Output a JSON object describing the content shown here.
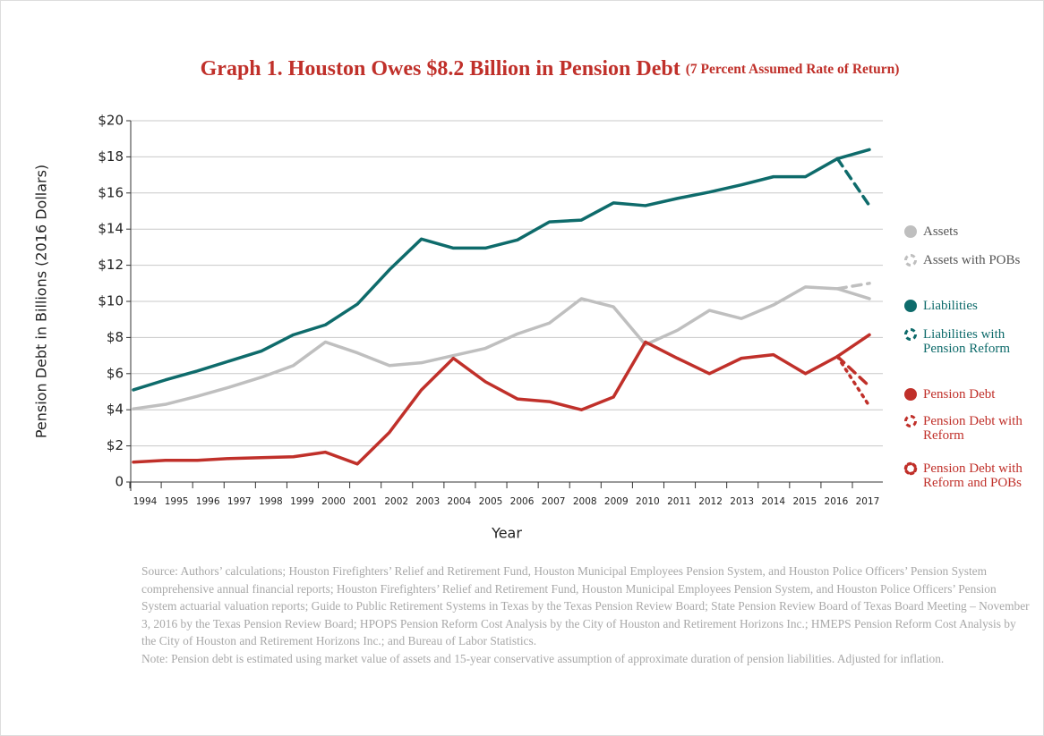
{
  "chart_data": {
    "type": "line",
    "title": "Graph 1. Houston Owes $8.2 Billion in Pension Debt",
    "subtitle": "(7 Percent Assumed Rate of Return)",
    "x_label": "Year",
    "y_label": "Pension Debt in Billions (2016 Dollars)",
    "categories": [
      "1994",
      "1995",
      "1996",
      "1997",
      "1998",
      "1999",
      "2000",
      "2001",
      "2002",
      "2003",
      "2004",
      "2005",
      "2006",
      "2007",
      "2008",
      "2009",
      "2010",
      "2011",
      "2012",
      "2013",
      "2014",
      "2015",
      "2016",
      "2017"
    ],
    "ylim": [
      0,
      20
    ],
    "yticks": [
      0,
      {
        "value": 2,
        "label": "$2"
      },
      {
        "value": 4,
        "label": "$4"
      },
      {
        "value": 6,
        "label": "$6"
      },
      {
        "value": 8,
        "label": "$8"
      },
      {
        "value": 10,
        "label": "$10"
      },
      {
        "value": 12,
        "label": "$12"
      },
      {
        "value": 14,
        "label": "$14"
      },
      {
        "value": 16,
        "label": "$16"
      },
      {
        "value": 18,
        "label": "$18"
      },
      {
        "value": 20,
        "label": "$20"
      }
    ],
    "grid": true,
    "legend": "right",
    "series": [
      {
        "name": "Assets",
        "color": "#bfbfbf",
        "dash": "solid",
        "values": [
          4.05,
          4.3,
          4.75,
          5.25,
          5.8,
          6.45,
          7.75,
          7.15,
          6.45,
          6.6,
          7.0,
          7.4,
          8.2,
          8.8,
          10.15,
          9.7,
          7.6,
          8.4,
          9.5,
          9.05,
          9.8,
          10.8,
          10.7,
          10.15
        ]
      },
      {
        "name": "Assets with POBs",
        "color": "#bfbfbf",
        "dash": "dashed",
        "values": [
          null,
          null,
          null,
          null,
          null,
          null,
          null,
          null,
          null,
          null,
          null,
          null,
          null,
          null,
          null,
          null,
          null,
          null,
          null,
          null,
          null,
          null,
          10.7,
          11.0
        ]
      },
      {
        "name": "Liabilities",
        "color": "#0e6b6b",
        "dash": "solid",
        "values": [
          5.1,
          5.65,
          6.15,
          6.7,
          7.25,
          8.15,
          8.7,
          9.85,
          11.75,
          13.45,
          12.95,
          12.95,
          13.4,
          14.4,
          14.5,
          15.45,
          15.3,
          15.7,
          16.05,
          16.45,
          16.9,
          16.9,
          17.9,
          18.4
        ]
      },
      {
        "name": "Liabilities with Pension Reform",
        "color": "#0e6b6b",
        "dash": "dashed",
        "values": [
          null,
          null,
          null,
          null,
          null,
          null,
          null,
          null,
          null,
          null,
          null,
          null,
          null,
          null,
          null,
          null,
          null,
          null,
          null,
          null,
          null,
          null,
          17.9,
          15.3
        ]
      },
      {
        "name": "Pension Debt",
        "color": "#c0302a",
        "dash": "solid",
        "values": [
          1.1,
          1.2,
          1.2,
          1.3,
          1.35,
          1.4,
          1.65,
          1.0,
          2.75,
          5.1,
          6.85,
          5.55,
          4.6,
          4.45,
          4.0,
          4.7,
          7.75,
          6.85,
          6.0,
          6.85,
          7.05,
          6.0,
          6.95,
          8.15
        ]
      },
      {
        "name": "Pension Debt with Reform",
        "color": "#c0302a",
        "dash": "dashed",
        "values": [
          null,
          null,
          null,
          null,
          null,
          null,
          null,
          null,
          null,
          null,
          null,
          null,
          null,
          null,
          null,
          null,
          null,
          null,
          null,
          null,
          null,
          null,
          6.95,
          5.3
        ]
      },
      {
        "name": "Pension Debt with Reform and POBs",
        "color": "#c0302a",
        "dash": "dotted",
        "values": [
          null,
          null,
          null,
          null,
          null,
          null,
          null,
          null,
          null,
          null,
          null,
          null,
          null,
          null,
          null,
          null,
          null,
          null,
          null,
          null,
          null,
          null,
          6.95,
          4.2
        ]
      }
    ]
  },
  "notes": {
    "source": "Source: Authors’ calculations; Houston Firefighters’ Relief and Retirement Fund, Houston Municipal Employees Pension System, and Houston Police Officers’ Pension System comprehensive annual financial reports; Houston Firefighters’ Relief and Retirement Fund, Houston Municipal Employees Pension System, and Houston Police Officers’ Pension System actuarial valuation reports; Guide to Public Retirement Systems in Texas by the Texas Pension Review Board; State Pension Review Board of Texas Board Meeting – November 3, 2016 by the Texas Pension Review Board; HPOPS Pension Reform Cost Analysis by the City of Houston and Retirement Horizons Inc.;  HMEPS Pension Reform Cost Analysis by the City of Houston and Retirement Horizons Inc.; and Bureau of Labor Statistics.",
    "note": "Note: Pension debt is estimated using market value of assets and 15-year conservative assumption of approximate duration of pension liabilities. Adjusted for inflation."
  }
}
